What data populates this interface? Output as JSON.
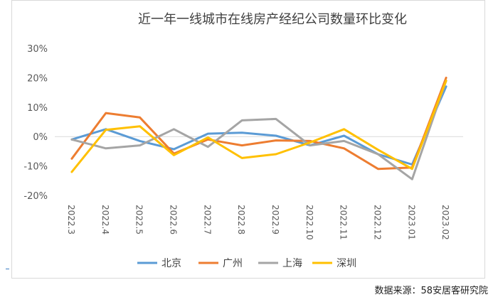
{
  "source_note": "数据来源：58安居客研究院",
  "chart_data": {
    "type": "line",
    "title": "近一年一线城市在线房产经纪公司数量环比变化",
    "xlabel": "",
    "ylabel": "",
    "categories": [
      "2022.3",
      "2022.4",
      "2022.5",
      "2022.6",
      "2022.7",
      "2022.8",
      "2022.9",
      "2022.10",
      "2022.11",
      "2022.12",
      "2023.01",
      "2023.02"
    ],
    "y_ticks": [
      "30%",
      "20%",
      "10%",
      "0%",
      "-10%",
      "-20%"
    ],
    "ylim": [
      -20,
      30
    ],
    "grid": "zero-line only",
    "legend_position": "bottom",
    "series": [
      {
        "name": "北京",
        "color": "#5b9bd5",
        "values": [
          -1,
          2.5,
          -1.5,
          -4.3,
          1,
          1.3,
          0.3,
          -3,
          0.3,
          -6,
          -9.5,
          17
        ]
      },
      {
        "name": "广州",
        "color": "#ed7d31",
        "values": [
          -7.5,
          8,
          6.5,
          -5.8,
          -1,
          -3,
          -1.3,
          -1.5,
          -4,
          -11,
          -10.5,
          20
        ]
      },
      {
        "name": "上海",
        "color": "#a5a5a5",
        "values": [
          -1,
          -4,
          -3,
          2.5,
          -3.5,
          5.5,
          6,
          -3,
          -1.5,
          -6,
          -14.5,
          19
        ]
      },
      {
        "name": "深圳",
        "color": "#ffc000",
        "values": [
          -12,
          2.3,
          3.5,
          -6.3,
          -0.3,
          -7.3,
          -6,
          -2,
          2.5,
          -4.5,
          -11,
          19
        ]
      }
    ]
  }
}
